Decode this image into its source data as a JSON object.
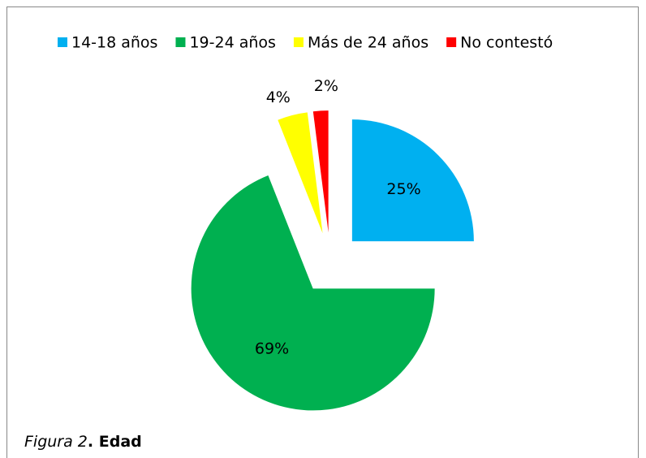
{
  "chart_data": {
    "type": "pie",
    "categories": [
      "14-18 años",
      "19-24 años",
      "Más de 24 años",
      "No contestó"
    ],
    "values": [
      25,
      69,
      4,
      2
    ],
    "value_labels": [
      "25%",
      "69%",
      "4%",
      "2%"
    ],
    "colors": [
      "#00b0f0",
      "#00b050",
      "#ffff00",
      "#ff0000"
    ],
    "legend": "top",
    "caption_italic": "Figura 2",
    "caption_bold": ". Edad"
  }
}
